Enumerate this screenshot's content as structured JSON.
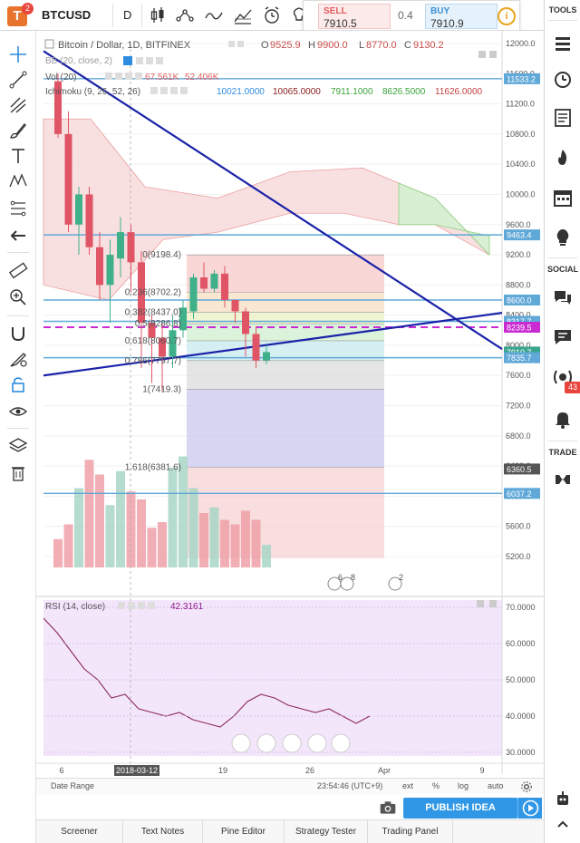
{
  "toolbar": {
    "logo_letter": "T",
    "logo_badge": "2",
    "symbol": "BTCUSD",
    "interval": "D"
  },
  "trade": {
    "sell_label": "SELL",
    "sell_price": "7910.5",
    "spread": "0.4",
    "buy_label": "BUY",
    "buy_price": "7910.9",
    "info_symbol": "i"
  },
  "legend": {
    "title": "Bitcoin / Dollar, 1D, BITFINEX",
    "o_label": "O",
    "o_value": "9525.9",
    "h_label": "H",
    "h_value": "9900.0",
    "l_label": "L",
    "l_value": "8770.0",
    "c_label": "C",
    "c_value": "9130.2",
    "bb_label": "BB (20, close, 2)",
    "vol_label": "Vol (20)",
    "vol_v1": "67.561K",
    "vol_v2": "52.406K",
    "ichi_label": "Ichimoku (9, 26, 52, 26)",
    "ichi_v1": "10021.0000",
    "ichi_v2": "10065.0000",
    "ichi_v3": "7911.1000",
    "ichi_v4": "8626.5000",
    "ichi_v5": "11626.0000"
  },
  "rsi": {
    "label": "RSI (14, close)",
    "value": "42.3161",
    "ticks": [
      "70.0000",
      "60.0000",
      "50.0000",
      "40.0000",
      "30.0000"
    ]
  },
  "price_axis": {
    "ticks": [
      "12000.0",
      "11600.0",
      "11200.0",
      "10800.0",
      "10400.0",
      "10000.0",
      "9600.0",
      "9200.0",
      "8800.0",
      "8400.0",
      "8000.0",
      "7600.0",
      "7200.0",
      "6800.0",
      "6400.0",
      "6000.0",
      "5600.0",
      "5200.0"
    ],
    "labels": [
      {
        "text": "11533.2",
        "color": "#5fa8d8"
      },
      {
        "text": "9463.4",
        "color": "#5fa8d8"
      },
      {
        "text": "8600.0",
        "color": "#5fa8d8"
      },
      {
        "text": "8317.7",
        "color": "#5fa8d8"
      },
      {
        "text": "8239.5",
        "color": "#c92ad1"
      },
      {
        "text": "7910.7",
        "color": "#3aa58e"
      },
      {
        "text": "7835.7",
        "color": "#5fa8d8"
      },
      {
        "text": "6360.5",
        "color": "#555555"
      },
      {
        "text": "6037.2",
        "color": "#5fa8d8"
      }
    ]
  },
  "fib": [
    {
      "text": "0(9198.4)"
    },
    {
      "text": "0.236(8702.2)"
    },
    {
      "text": "0.382(8437.0)"
    },
    {
      "text": "0.5(8286.8)"
    },
    {
      "text": "0.618(8060.7)"
    },
    {
      "text": "0.786(7797.7)"
    },
    {
      "text": "1(7419.3)"
    },
    {
      "text": "1.618(6381.6)"
    }
  ],
  "time_axis": {
    "labels": [
      "6",
      "2018-03-12",
      "19",
      "26",
      "Apr",
      "9"
    ],
    "date_range": "Date Range",
    "clock": "23:54:46 (UTC+9)",
    "ext": "ext",
    "pct": "%",
    "log": "log",
    "auto": "auto"
  },
  "events": {
    "flag1": "6",
    "flag2": "8",
    "flag3": "2"
  },
  "bottom": {
    "publish": "PUBLISH IDEA",
    "tabs": [
      "Screener",
      "Text Notes",
      "Pine Editor",
      "Strategy Tester",
      "Trading Panel"
    ]
  },
  "sidebar": {
    "tools": "TOOLS",
    "social": "SOCIAL",
    "trade": "TRADE",
    "alerts_badge": "43"
  },
  "chart_data": {
    "type": "candlestick",
    "symbol": "BTCUSD",
    "interval": "1D",
    "ylim": [
      4800,
      12300
    ],
    "candles": [
      {
        "o": 11500,
        "h": 11600,
        "l": 10750,
        "c": 10800
      },
      {
        "o": 10800,
        "h": 11100,
        "l": 9500,
        "c": 9600
      },
      {
        "o": 9600,
        "h": 10100,
        "l": 9200,
        "c": 10000
      },
      {
        "o": 10000,
        "h": 10100,
        "l": 9200,
        "c": 9300
      },
      {
        "o": 9300,
        "h": 9500,
        "l": 8600,
        "c": 8800
      },
      {
        "o": 8800,
        "h": 9400,
        "l": 8300,
        "c": 9200
      },
      {
        "o": 9150,
        "h": 9700,
        "l": 8900,
        "c": 9500
      },
      {
        "o": 9500,
        "h": 9600,
        "l": 8700,
        "c": 9100
      },
      {
        "o": 9100,
        "h": 9250,
        "l": 7700,
        "c": 8300
      },
      {
        "o": 8300,
        "h": 8400,
        "l": 7500,
        "c": 8100
      },
      {
        "o": 8100,
        "h": 8300,
        "l": 7400,
        "c": 7850
      },
      {
        "o": 7850,
        "h": 8400,
        "l": 7700,
        "c": 8200
      },
      {
        "o": 8200,
        "h": 8600,
        "l": 8100,
        "c": 8500
      },
      {
        "o": 8450,
        "h": 8950,
        "l": 8350,
        "c": 8900
      },
      {
        "o": 8900,
        "h": 9100,
        "l": 8700,
        "c": 8750
      },
      {
        "o": 8750,
        "h": 9000,
        "l": 8700,
        "c": 8950
      },
      {
        "o": 8950,
        "h": 9050,
        "l": 8500,
        "c": 8600
      },
      {
        "o": 8600,
        "h": 8600,
        "l": 8300,
        "c": 8450
      },
      {
        "o": 8450,
        "h": 8500,
        "l": 7850,
        "c": 8150
      },
      {
        "o": 8150,
        "h": 8250,
        "l": 7700,
        "c": 7800
      },
      {
        "o": 7800,
        "h": 8000,
        "l": 7750,
        "c": 7910
      }
    ],
    "volume": [
      25,
      38,
      70,
      95,
      82,
      55,
      85,
      67,
      60,
      35,
      40,
      88,
      98,
      70,
      48,
      53,
      42,
      38,
      50,
      42,
      20
    ],
    "rsi": [
      67,
      63,
      58,
      53,
      50,
      45,
      46,
      42,
      41,
      40,
      41,
      39,
      38,
      37,
      40,
      44,
      46,
      45,
      43,
      42,
      41,
      42,
      40,
      38,
      40
    ],
    "horizontal_levels": [
      11533.2,
      9463.4,
      8600.0,
      8317.7,
      7835.7,
      6037.2
    ],
    "dashed_level": 8239.5
  }
}
